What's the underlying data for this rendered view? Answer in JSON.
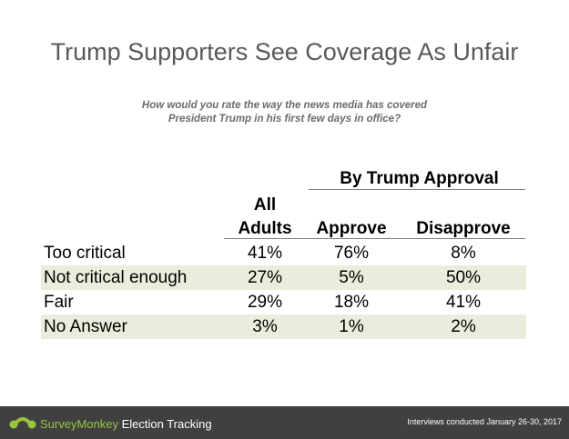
{
  "title": "Trump Supporters See Coverage As Unfair",
  "subtitle": {
    "line1": "How would you rate the way the news media has covered",
    "line2": "President Trump in his first few days in office?"
  },
  "table": {
    "group_header": "By  Trump Approval",
    "columns": {
      "all_line1": "All",
      "all_line2": "Adults",
      "approve": "Approve",
      "disapprove": "Disapprove"
    },
    "rows": [
      {
        "label": "Too critical",
        "all": "41%",
        "approve": "76%",
        "disapprove": "8%"
      },
      {
        "label": "Not critical enough",
        "all": "27%",
        "approve": "5%",
        "disapprove": "50%"
      },
      {
        "label": "Fair",
        "all": "29%",
        "approve": "18%",
        "disapprove": "41%"
      },
      {
        "label": "No Answer",
        "all": "3%",
        "approve": "1%",
        "disapprove": "2%"
      }
    ]
  },
  "footer": {
    "brand_part1": "SurveyMonkey",
    "brand_part2": " Election Tracking",
    "note": "Interviews conducted January 26-30, 2017",
    "logo_icon": "surveymonkey-logo-icon",
    "brand_color": "#9bc53d",
    "background": "#404040"
  },
  "colors": {
    "row_shade": "#e8eedb",
    "title": "#595959"
  }
}
